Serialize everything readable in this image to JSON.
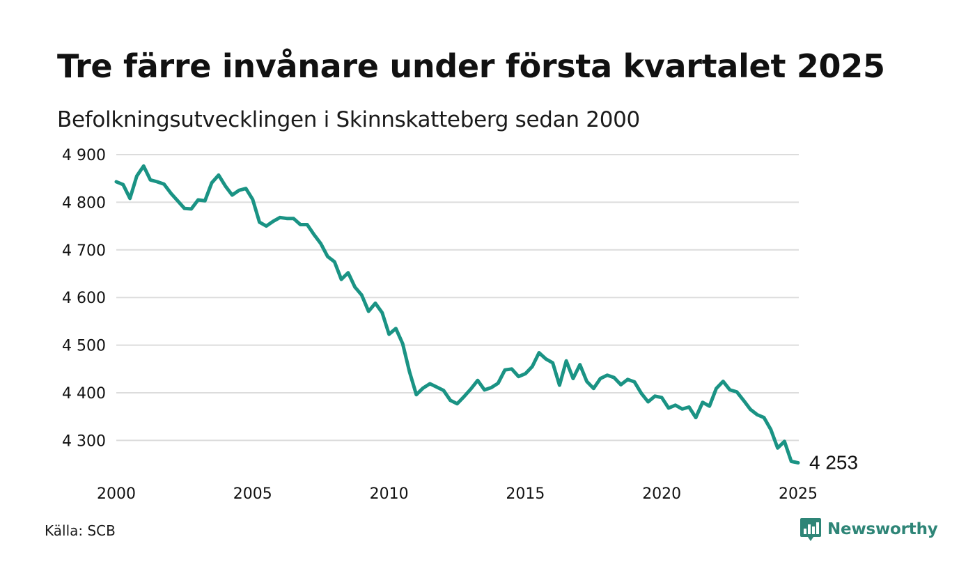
{
  "title": "Tre färre invånare under första kvartalet 2025",
  "subtitle": "Befolkningsutvecklingen i Skinnskatteberg sedan 2000",
  "source": "Källa: SCB",
  "brand": {
    "name": "Newsworthy",
    "icon": "newsworthy-logo-icon",
    "color": "#2e8577"
  },
  "chart_data": {
    "type": "line",
    "title": "Tre färre invånare under första kvartalet 2025",
    "subtitle": "Befolkningsutvecklingen i Skinnskatteberg sedan 2000",
    "xlabel": "",
    "ylabel": "",
    "xlim": [
      2000,
      2025
    ],
    "ylim": [
      4253,
      4900
    ],
    "x_ticks": [
      2000,
      2005,
      2010,
      2015,
      2020,
      2025
    ],
    "x_tick_labels": [
      "2000",
      "2005",
      "2010",
      "2015",
      "2020",
      "2025"
    ],
    "y_ticks": [
      4300,
      4400,
      4500,
      4600,
      4700,
      4800,
      4900
    ],
    "y_tick_labels": [
      "4 300",
      "4 400",
      "4 500",
      "4 600",
      "4 700",
      "4 800",
      "4 900"
    ],
    "grid": true,
    "legend": "none",
    "line_color": "#1a9384",
    "end_label": "4 253",
    "series": [
      {
        "x": [
          2000.0,
          2000.25,
          2000.5,
          2000.75,
          2001.0,
          2001.25,
          2001.5,
          2001.75,
          2002.0,
          2002.25,
          2002.5,
          2002.75,
          2003.0,
          2003.25,
          2003.5,
          2003.75,
          2004.0,
          2004.25,
          2004.5,
          2004.75,
          2005.0,
          2005.25,
          2005.5,
          2005.75,
          2006.0,
          2006.25,
          2006.5,
          2006.75,
          2007.0,
          2007.25,
          2007.5,
          2007.75,
          2008.0,
          2008.25,
          2008.5,
          2008.75,
          2009.0,
          2009.25,
          2009.5,
          2009.75,
          2010.0,
          2010.25,
          2010.5,
          2010.75,
          2011.0,
          2011.25,
          2011.5,
          2011.75,
          2012.0,
          2012.25,
          2012.5,
          2012.75,
          2013.0,
          2013.25,
          2013.5,
          2013.75,
          2014.0,
          2014.25,
          2014.5,
          2014.75,
          2015.0,
          2015.25,
          2015.5,
          2015.75,
          2016.0,
          2016.25,
          2016.5,
          2016.75,
          2017.0,
          2017.25,
          2017.5,
          2017.75,
          2018.0,
          2018.25,
          2018.5,
          2018.75,
          2019.0,
          2019.25,
          2019.5,
          2019.75,
          2020.0,
          2020.25,
          2020.5,
          2020.75,
          2021.0,
          2021.25,
          2021.5,
          2021.75,
          2022.0,
          2022.25,
          2022.5,
          2022.75,
          2023.0,
          2023.25,
          2023.5,
          2023.75,
          2024.0,
          2024.25,
          2024.5,
          2024.75,
          2025.0
        ],
        "y": [
          4843,
          4837,
          4808,
          4855,
          4876,
          4847,
          4843,
          4838,
          4819,
          4803,
          4787,
          4786,
          4805,
          4803,
          4841,
          4857,
          4834,
          4815,
          4825,
          4829,
          4806,
          4758,
          4750,
          4760,
          4768,
          4766,
          4766,
          4753,
          4753,
          4732,
          4713,
          4686,
          4675,
          4638,
          4652,
          4622,
          4605,
          4571,
          4588,
          4568,
          4523,
          4535,
          4503,
          4444,
          4396,
          4410,
          4419,
          4412,
          4405,
          4384,
          4377,
          4392,
          4408,
          4426,
          4406,
          4411,
          4420,
          4448,
          4450,
          4434,
          4440,
          4455,
          4484,
          4471,
          4463,
          4416,
          4467,
          4430,
          4459,
          4424,
          4409,
          4430,
          4437,
          4432,
          4417,
          4428,
          4423,
          4399,
          4381,
          4393,
          4390,
          4368,
          4374,
          4366,
          4370,
          4348,
          4380,
          4372,
          4409,
          4424,
          4406,
          4402,
          4384,
          4365,
          4354,
          4348,
          4323,
          4284,
          4298,
          4256,
          4253
        ]
      }
    ]
  }
}
